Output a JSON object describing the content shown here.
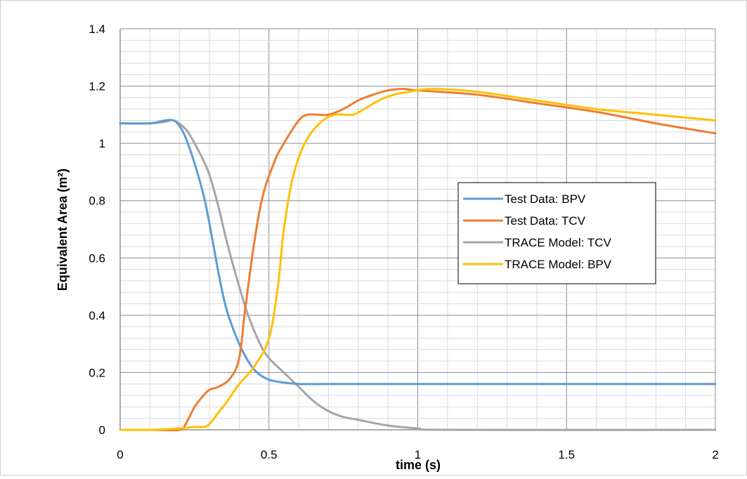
{
  "chart_data": {
    "type": "line",
    "xlabel": "time (s)",
    "ylabel": "Equivalent Area (m²)",
    "xlim": [
      0,
      2
    ],
    "ylim": [
      0,
      1.4
    ],
    "x_ticks": [
      "0",
      "0.5",
      "1",
      "1.5",
      "2"
    ],
    "y_ticks": [
      "0",
      "0.2",
      "0.4",
      "0.6",
      "0.8",
      "1",
      "1.2",
      "1.4"
    ],
    "x_tick_values": [
      0,
      0.5,
      1,
      1.5,
      2
    ],
    "y_tick_values": [
      0,
      0.2,
      0.4,
      0.6,
      0.8,
      1.0,
      1.2,
      1.4
    ],
    "grid": true,
    "minor_grid": true,
    "legend_position": "center-right",
    "series": [
      {
        "name": "Test Data: BPV",
        "color": "#5B9BD5",
        "points": [
          [
            0,
            1.07
          ],
          [
            0.1,
            1.07
          ],
          [
            0.15,
            1.08
          ],
          [
            0.18,
            1.08
          ],
          [
            0.2,
            1.06
          ],
          [
            0.22,
            1.02
          ],
          [
            0.25,
            0.93
          ],
          [
            0.28,
            0.82
          ],
          [
            0.3,
            0.72
          ],
          [
            0.33,
            0.55
          ],
          [
            0.35,
            0.45
          ],
          [
            0.37,
            0.38
          ],
          [
            0.4,
            0.3
          ],
          [
            0.43,
            0.24
          ],
          [
            0.46,
            0.2
          ],
          [
            0.5,
            0.175
          ],
          [
            0.55,
            0.165
          ],
          [
            0.6,
            0.16
          ],
          [
            0.7,
            0.16
          ],
          [
            1,
            0.16
          ],
          [
            1.5,
            0.16
          ],
          [
            2,
            0.16
          ]
        ]
      },
      {
        "name": "Test Data: TCV",
        "color": "#ED7D31",
        "points": [
          [
            0,
            0
          ],
          [
            0.1,
            0
          ],
          [
            0.2,
            0
          ],
          [
            0.22,
            0.02
          ],
          [
            0.25,
            0.08
          ],
          [
            0.28,
            0.12
          ],
          [
            0.3,
            0.14
          ],
          [
            0.33,
            0.15
          ],
          [
            0.37,
            0.18
          ],
          [
            0.4,
            0.25
          ],
          [
            0.42,
            0.42
          ],
          [
            0.45,
            0.65
          ],
          [
            0.48,
            0.82
          ],
          [
            0.52,
            0.94
          ],
          [
            0.55,
            1.0
          ],
          [
            0.6,
            1.08
          ],
          [
            0.63,
            1.1
          ],
          [
            0.67,
            1.1
          ],
          [
            0.7,
            1.1
          ],
          [
            0.75,
            1.12
          ],
          [
            0.8,
            1.15
          ],
          [
            0.85,
            1.17
          ],
          [
            0.9,
            1.185
          ],
          [
            0.95,
            1.19
          ],
          [
            1.0,
            1.185
          ],
          [
            1.2,
            1.17
          ],
          [
            1.4,
            1.14
          ],
          [
            1.6,
            1.11
          ],
          [
            1.8,
            1.07
          ],
          [
            2.0,
            1.035
          ]
        ]
      },
      {
        "name": "TRACE Model: TCV",
        "color": "#A5A5A5",
        "points": [
          [
            0,
            1.07
          ],
          [
            0.1,
            1.07
          ],
          [
            0.15,
            1.075
          ],
          [
            0.18,
            1.08
          ],
          [
            0.22,
            1.05
          ],
          [
            0.25,
            1.0
          ],
          [
            0.28,
            0.94
          ],
          [
            0.3,
            0.89
          ],
          [
            0.33,
            0.78
          ],
          [
            0.36,
            0.65
          ],
          [
            0.4,
            0.5
          ],
          [
            0.43,
            0.4
          ],
          [
            0.47,
            0.3
          ],
          [
            0.5,
            0.25
          ],
          [
            0.55,
            0.2
          ],
          [
            0.6,
            0.15
          ],
          [
            0.65,
            0.1
          ],
          [
            0.7,
            0.065
          ],
          [
            0.75,
            0.045
          ],
          [
            0.8,
            0.035
          ],
          [
            0.9,
            0.015
          ],
          [
            1.0,
            0.005
          ],
          [
            1.1,
            0
          ],
          [
            2,
            0
          ]
        ]
      },
      {
        "name": "TRACE Model: BPV",
        "color": "#FFC000",
        "points": [
          [
            0,
            0
          ],
          [
            0.1,
            0
          ],
          [
            0.2,
            0.005
          ],
          [
            0.25,
            0.01
          ],
          [
            0.28,
            0.01
          ],
          [
            0.3,
            0.02
          ],
          [
            0.33,
            0.06
          ],
          [
            0.36,
            0.1
          ],
          [
            0.4,
            0.16
          ],
          [
            0.45,
            0.22
          ],
          [
            0.5,
            0.32
          ],
          [
            0.53,
            0.5
          ],
          [
            0.55,
            0.7
          ],
          [
            0.58,
            0.88
          ],
          [
            0.62,
            1.0
          ],
          [
            0.67,
            1.07
          ],
          [
            0.72,
            1.1
          ],
          [
            0.78,
            1.1
          ],
          [
            0.82,
            1.12
          ],
          [
            0.87,
            1.15
          ],
          [
            0.92,
            1.17
          ],
          [
            0.97,
            1.18
          ],
          [
            1.05,
            1.19
          ],
          [
            1.2,
            1.18
          ],
          [
            1.4,
            1.15
          ],
          [
            1.6,
            1.12
          ],
          [
            1.8,
            1.1
          ],
          [
            2.0,
            1.08
          ]
        ]
      }
    ]
  }
}
